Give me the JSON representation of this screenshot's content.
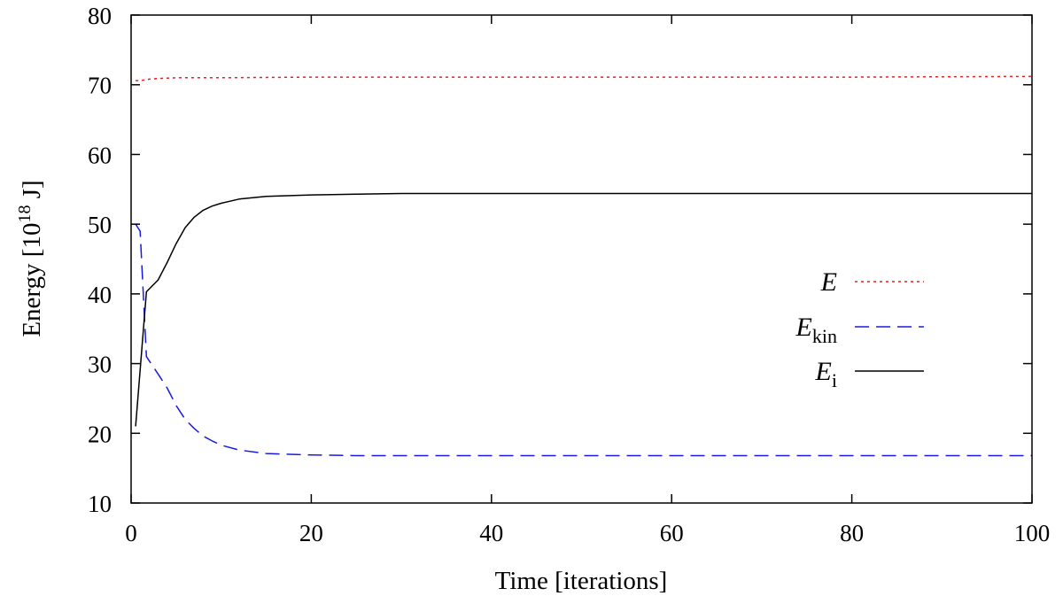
{
  "chart_data": {
    "type": "line",
    "title": "",
    "xlabel": "Time [iterations]",
    "ylabel": {
      "prefix": "Energy [10",
      "exponent": "18",
      "suffix": " J]"
    },
    "xlim": [
      0,
      100
    ],
    "ylim": [
      10,
      80
    ],
    "xticks": [
      "0",
      "20",
      "40",
      "60",
      "80",
      "100"
    ],
    "yticks": [
      "10",
      "20",
      "30",
      "40",
      "50",
      "60",
      "70",
      "80"
    ],
    "grid": false,
    "legend_position": "right",
    "series": [
      {
        "key": "E",
        "name": "E",
        "name_sub": "",
        "color": "#e02020",
        "style": "dotted",
        "x": [
          0.5,
          1,
          2,
          3,
          5,
          10,
          20,
          40,
          60,
          80,
          100
        ],
        "y": [
          70.6,
          70.6,
          70.8,
          70.9,
          71.0,
          71.0,
          71.1,
          71.1,
          71.1,
          71.1,
          71.2
        ]
      },
      {
        "key": "Ekin",
        "name": "E",
        "name_sub": "kin",
        "color": "#1a1adf",
        "style": "dashed",
        "x": [
          0.5,
          1,
          1.7,
          3,
          4,
          5,
          6,
          7,
          8,
          9,
          10,
          12,
          15,
          20,
          25,
          30,
          40,
          60,
          80,
          100
        ],
        "y": [
          50,
          49,
          31,
          28.5,
          26.5,
          24,
          22,
          20.7,
          19.6,
          18.9,
          18.3,
          17.6,
          17.1,
          16.9,
          16.8,
          16.8,
          16.8,
          16.8,
          16.8,
          16.8
        ]
      },
      {
        "key": "Ei",
        "name": "E",
        "name_sub": "i",
        "color": "#000000",
        "style": "solid",
        "x": [
          0.5,
          1.7,
          3,
          4,
          5,
          6,
          7,
          8,
          9,
          10,
          12,
          15,
          20,
          25,
          30,
          40,
          60,
          80,
          100
        ],
        "y": [
          21,
          40.3,
          42,
          44.5,
          47.2,
          49.5,
          51,
          52,
          52.6,
          53,
          53.6,
          54,
          54.2,
          54.3,
          54.4,
          54.4,
          54.4,
          54.4,
          54.4
        ]
      }
    ]
  }
}
